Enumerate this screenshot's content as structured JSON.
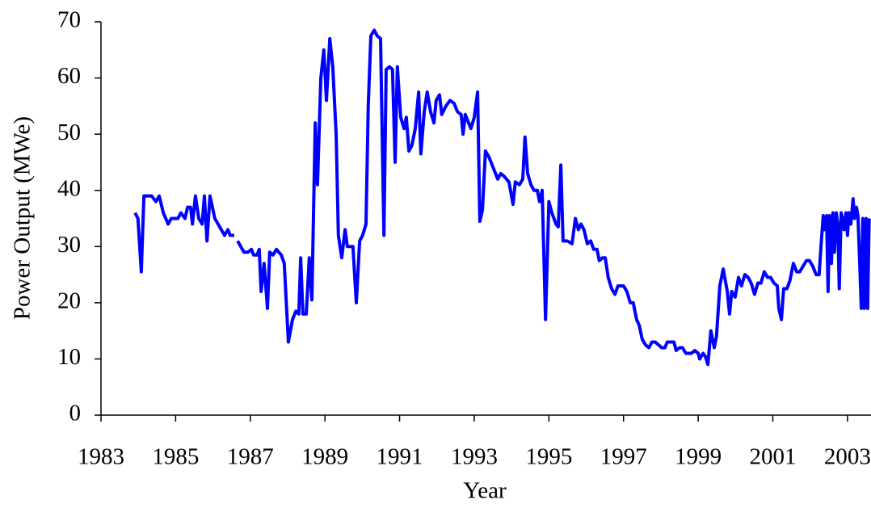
{
  "chart_data": {
    "type": "line",
    "xlabel": "Year",
    "ylabel": "Power Output (MWe)",
    "x": [
      1983.91,
      1983.99,
      1984.08,
      1984.15,
      1984.36,
      1984.47,
      1984.56,
      1984.67,
      1984.8,
      1984.88,
      1985.06,
      1985.14,
      1985.25,
      1985.32,
      1985.4,
      1985.45,
      1985.53,
      1985.62,
      1985.71,
      1985.77,
      1985.84,
      1985.92,
      1986.05,
      1986.18,
      1986.31,
      1986.4,
      1986.46,
      1986.57,
      1986.61,
      1986.66,
      1986.83,
      1986.94,
      1987.03,
      1987.09,
      1987.18,
      1987.24,
      1987.29,
      1987.37,
      1987.46,
      1987.52,
      1987.61,
      1987.7,
      1987.83,
      1987.91,
      1988.02,
      1988.13,
      1988.22,
      1988.3,
      1988.35,
      1988.41,
      1988.5,
      1988.58,
      1988.65,
      1988.74,
      1988.8,
      1988.89,
      1988.97,
      1989.04,
      1989.13,
      1989.21,
      1989.3,
      1989.36,
      1989.45,
      1989.54,
      1989.6,
      1989.75,
      1989.84,
      1989.93,
      1990.01,
      1990.1,
      1990.16,
      1990.23,
      1990.32,
      1990.4,
      1990.49,
      1990.58,
      1990.64,
      1990.73,
      1990.81,
      1990.88,
      1990.94,
      1991.03,
      1991.12,
      1991.18,
      1991.25,
      1991.33,
      1991.42,
      1991.51,
      1991.57,
      1991.66,
      1991.74,
      1991.83,
      1991.92,
      1991.98,
      1992.07,
      1992.13,
      1992.24,
      1992.35,
      1992.46,
      1992.55,
      1992.65,
      1992.7,
      1992.76,
      1992.85,
      1992.91,
      1993.0,
      1993.09,
      1993.15,
      1993.22,
      1993.3,
      1993.39,
      1993.48,
      1993.54,
      1993.63,
      1993.71,
      1993.8,
      1993.93,
      1994.04,
      1994.1,
      1994.21,
      1994.3,
      1994.36,
      1994.43,
      1994.52,
      1994.6,
      1994.69,
      1994.75,
      1994.82,
      1994.91,
      1995.0,
      1995.08,
      1995.19,
      1995.25,
      1995.32,
      1995.38,
      1995.49,
      1995.62,
      1995.71,
      1995.79,
      1995.86,
      1995.94,
      1996.03,
      1996.12,
      1996.2,
      1996.29,
      1996.35,
      1996.44,
      1996.51,
      1996.59,
      1996.68,
      1996.77,
      1996.85,
      1997.0,
      1997.09,
      1997.18,
      1997.26,
      1997.35,
      1997.42,
      1997.5,
      1997.59,
      1997.68,
      1997.76,
      1997.85,
      1997.94,
      1998.02,
      1998.11,
      1998.17,
      1998.26,
      1998.35,
      1998.41,
      1998.5,
      1998.58,
      1998.67,
      1998.76,
      1998.82,
      1998.91,
      1999.0,
      1999.04,
      1999.13,
      1999.19,
      1999.26,
      1999.34,
      1999.43,
      1999.49,
      1999.58,
      1999.67,
      1999.78,
      1999.84,
      1999.9,
      1999.99,
      2000.08,
      2000.16,
      2000.25,
      2000.34,
      2000.42,
      2000.51,
      2000.6,
      2000.68,
      2000.77,
      2000.86,
      2000.94,
      2001.03,
      2001.12,
      2001.16,
      2001.23,
      2001.29,
      2001.38,
      2001.46,
      2001.55,
      2001.64,
      2001.72,
      2001.81,
      2001.9,
      2001.98,
      2002.07,
      2002.16,
      2002.24,
      2002.29,
      2002.35,
      2002.39,
      2002.44,
      2002.48,
      2002.52,
      2002.57,
      2002.61,
      2002.65,
      2002.7,
      2002.74,
      2002.78,
      2002.83,
      2002.87,
      2002.91,
      2002.96,
      2003.0,
      2003.04,
      2003.09,
      2003.15,
      2003.19,
      2003.24,
      2003.28,
      2003.32,
      2003.37,
      2003.41,
      2003.45,
      2003.5,
      2003.54,
      2003.58
    ],
    "series": [
      {
        "color": "#0000ff",
        "values": [
          36,
          35,
          25.5,
          39,
          39,
          38,
          39,
          36,
          34,
          35,
          35,
          36,
          35,
          37,
          37,
          34,
          39,
          35,
          34,
          39,
          31,
          39,
          35,
          33.5,
          32,
          33,
          32,
          32,
          null,
          31,
          29,
          29,
          29.5,
          28.5,
          28.5,
          29.5,
          22,
          27,
          19,
          29,
          28.5,
          29.5,
          28.5,
          27,
          13,
          17,
          18.5,
          18,
          28,
          18,
          18,
          28,
          20.5,
          52,
          41,
          60,
          65,
          56,
          67,
          62,
          50,
          32,
          28,
          33,
          30,
          30,
          20,
          31,
          32,
          34,
          55,
          67.5,
          68.5,
          67.5,
          67,
          32,
          61.5,
          62,
          61.5,
          45,
          62,
          53,
          51,
          53,
          47,
          48,
          51,
          57.5,
          46.5,
          54,
          57.5,
          54,
          52,
          56,
          57,
          53.5,
          55,
          56,
          55.5,
          54,
          53.5,
          50,
          53.5,
          52,
          51,
          53,
          57.5,
          34.5,
          36.5,
          47,
          46,
          44.5,
          43.5,
          42,
          43,
          42.5,
          41.5,
          37.5,
          41.5,
          41,
          42,
          49.5,
          43,
          41,
          40,
          40,
          38,
          40,
          17,
          38,
          36,
          34,
          33.5,
          44.5,
          31,
          31,
          30.5,
          35,
          33,
          34,
          33,
          30.5,
          31,
          29.5,
          29.5,
          27.5,
          28,
          28,
          24.5,
          22.5,
          21.5,
          23,
          23,
          22,
          20,
          20,
          17,
          16,
          13.5,
          12.5,
          12,
          13,
          13,
          12.5,
          12,
          12,
          13,
          13,
          13,
          11.5,
          12,
          12,
          11,
          11,
          11,
          11.5,
          11,
          10,
          11,
          10.5,
          9,
          15,
          12,
          14,
          23,
          26,
          22,
          18,
          22,
          21,
          24.5,
          23,
          25,
          24.5,
          23.5,
          21.5,
          23.5,
          23.5,
          25.5,
          24.5,
          24.5,
          23.5,
          23,
          19,
          17,
          22.5,
          22.5,
          24,
          27,
          25.5,
          25.5,
          26.5,
          27.5,
          27.5,
          26.5,
          25,
          25,
          30,
          35.5,
          33,
          35.5,
          22,
          35.5,
          27,
          36,
          29,
          36,
          34,
          22.5,
          36,
          35,
          33,
          36,
          32,
          36,
          34,
          38.5,
          35,
          37,
          35.5,
          28.5,
          19,
          35,
          19,
          35,
          19,
          35
        ]
      }
    ],
    "xlim": [
      1983,
      2003.63
    ],
    "xticks": [
      1983,
      1985,
      1987,
      1989,
      1991,
      1993,
      1995,
      1997,
      1999,
      2001,
      2003
    ],
    "ylim": [
      0,
      70
    ],
    "yticks": [
      0,
      10,
      20,
      30,
      40,
      50,
      60,
      70
    ]
  }
}
